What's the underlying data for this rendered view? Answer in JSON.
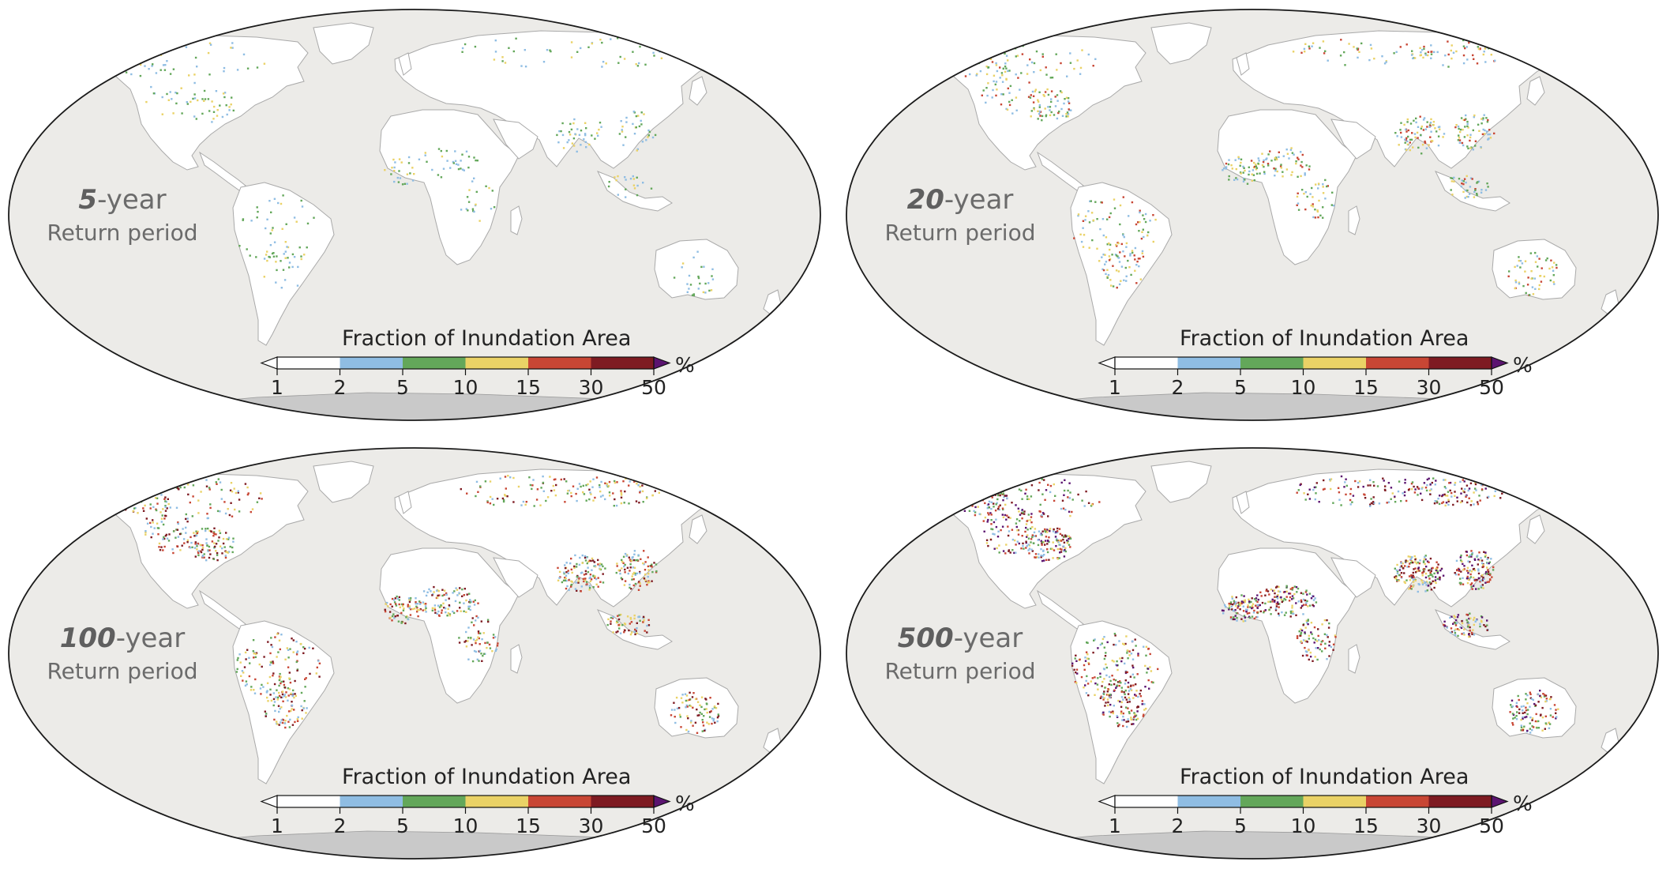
{
  "colorbar": {
    "title": "Fraction of Inundation Area",
    "unit": "%",
    "ticks": [
      "1",
      "2",
      "5",
      "10",
      "15",
      "30",
      "50"
    ],
    "bin_colors": [
      "#ffffff",
      "#8fbde3",
      "#63a75a",
      "#ead266",
      "#c84634",
      "#7e1b22"
    ],
    "extend_low_color": "#ffffff",
    "extend_high_color": "#5b1470"
  },
  "panels": [
    {
      "value": "5",
      "suffix": "-year",
      "subtitle": "Return period",
      "intensity": 1
    },
    {
      "value": "20",
      "suffix": "-year",
      "subtitle": "Return period",
      "intensity": 2
    },
    {
      "value": "100",
      "suffix": "-year",
      "subtitle": "Return period",
      "intensity": 3
    },
    {
      "value": "500",
      "suffix": "-year",
      "subtitle": "Return period",
      "intensity": 4
    }
  ],
  "colors": {
    "ocean": "#ecebe8",
    "land": "#ffffff",
    "antarctica": "#c9c9c9",
    "outline": "#1a1a1a"
  }
}
